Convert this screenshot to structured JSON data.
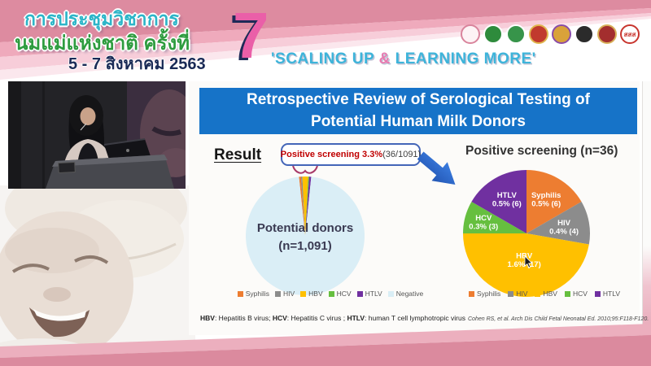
{
  "header": {
    "conference_title_line1": "การประชุมวิชาการ",
    "conference_title_line2": "นมแม่แห่งชาติ ครั้งที่",
    "date": "5 - 7 สิงหาคม 2563",
    "edition_number": "7",
    "slogan_prefix": "'SCALING UP ",
    "slogan_amp": "&",
    "slogan_suffix": " LEARNING MORE'",
    "logos": [
      {
        "name": "mother-child-foundation-logo",
        "bg": "#fdf3f5",
        "ring": "#d9849c",
        "text": ""
      },
      {
        "name": "breastfeeding-center-logo",
        "bg": "#2e8b3c",
        "ring": "#ffffff",
        "text": ""
      },
      {
        "name": "health-department-logo",
        "bg": "#37944a",
        "ring": "#ffffff",
        "text": ""
      },
      {
        "name": "royal-college-pediatricians-logo",
        "bg": "#c13a2e",
        "ring": "#e0b64e",
        "text": ""
      },
      {
        "name": "royal-college-obgyn-logo",
        "bg": "#d9a23a",
        "ring": "#8a4ca8",
        "text": ""
      },
      {
        "name": "medical-council-logo",
        "bg": "#2b2b2b",
        "ring": "#ffffff",
        "text": ""
      },
      {
        "name": "nursing-council-logo",
        "bg": "#a32e2e",
        "ring": "#d8b05a",
        "text": ""
      },
      {
        "name": "thai-health-promotion-logo",
        "bg": "#ffffff",
        "ring": "#c8352e",
        "text": "สสส"
      }
    ]
  },
  "slide": {
    "title": "Retrospective Review of Serological Testing of Potential Human Milk Donors",
    "result_label": "Result",
    "callout_highlight": "Positive screening 3.3%",
    "callout_detail": " (36/1091)",
    "footnote_parts": [
      [
        "HBV",
        ": Hepatitis B virus; "
      ],
      [
        "HCV",
        ": Hepatitis C virus ; "
      ],
      [
        "HTLV",
        ": human T cell lymphotropic virus"
      ]
    ],
    "citation": "Cohen RS, et al. Arch Dis Child Fetal Neonatal Ed. 2010;95:F118-F120."
  },
  "colors": {
    "title_bar_blue": "#1673c8",
    "callout_red": "#c00000",
    "callout_border_blue": "#4466b8",
    "arrow_blue": "#2f6fd6",
    "header_pink_dark": "#dd8ba0",
    "header_pink_light": "#f7cdd9",
    "slogan_blue": "#3db4da",
    "slogan_amp_pink": "#e87bb0",
    "edition_number_pink": "#ea5fa8"
  },
  "chart_data": [
    {
      "type": "pie",
      "title": "Potential donors (n=1,091)",
      "center_label_line1": "Potential donors",
      "center_label_line2": "(n=1,091)",
      "categories": [
        "Syphilis",
        "HIV",
        "HBV",
        "HCV",
        "HTLV",
        "Negative"
      ],
      "values": [
        6,
        4,
        17,
        3,
        6,
        1055
      ],
      "colors": [
        "#ed7d31",
        "#8c8c8c",
        "#ffc000",
        "#66bf3f",
        "#7030a0",
        "#daeef6"
      ],
      "annotation": "Positive screening 3.3% (36/1091)",
      "legend_position": "bottom"
    },
    {
      "type": "pie",
      "title": "Positive screening (n=36)",
      "categories": [
        "Syphilis",
        "HIV",
        "HBV",
        "HCV",
        "HTLV"
      ],
      "values": [
        6,
        4,
        17,
        3,
        6
      ],
      "slice_labels": [
        [
          "Syphilis",
          "0.5% (6)"
        ],
        [
          "HIV",
          "0.4% (4)"
        ],
        [
          "HBV",
          "1.6% (17)"
        ],
        [
          "HCV",
          "0.3% (3)"
        ],
        [
          "HTLV",
          "0.5% (6)"
        ]
      ],
      "colors": [
        "#ed7d31",
        "#8c8c8c",
        "#ffc000",
        "#66bf3f",
        "#7030a0"
      ],
      "legend_position": "bottom"
    }
  ]
}
